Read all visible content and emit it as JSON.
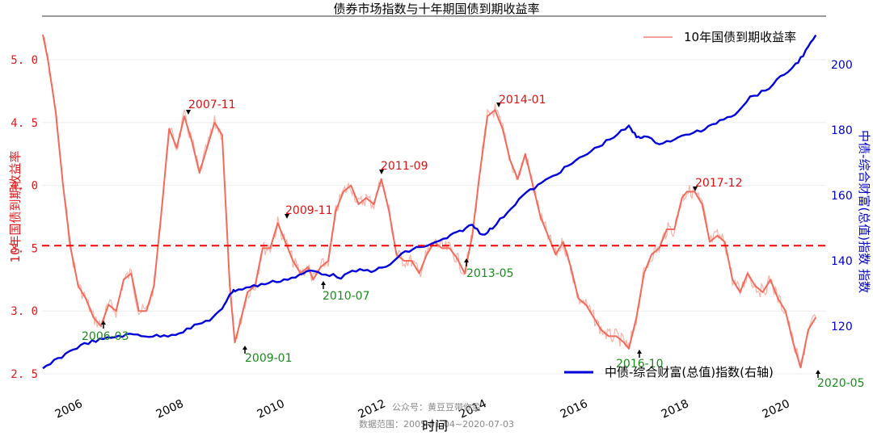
{
  "chart_data": {
    "type": "line",
    "title": "债券市场指数与十年期国债到期收益率",
    "xlabel": "时间",
    "ylabel_left": "10年国债到期收益率",
    "ylabel_right": "中债-综合财富(总值)指数",
    "x_ticks": [
      "2006",
      "2008",
      "2010",
      "2012",
      "2014",
      "2016",
      "2018",
      "2020"
    ],
    "y_left_ticks": [
      "5.0",
      "4.5",
      "4.0",
      "3.5",
      "3.0",
      "2.5"
    ],
    "y_right_ticks": [
      "200",
      "180",
      "160",
      "140",
      "120"
    ],
    "ylim_left": [
      2.45,
      5.25
    ],
    "ylim_right": [
      105,
      210
    ],
    "xlim": [
      2005.2,
      2020.55
    ],
    "grid": "horizontal light",
    "reference_line": {
      "value": 3.52,
      "style": "dashed",
      "color": "#ff0000",
      "axis": "left"
    },
    "series": [
      {
        "name": "10年国债到期收益率",
        "axis": "left",
        "color": "#f26b5b",
        "x": [
          2005.2,
          2005.3,
          2005.45,
          2005.6,
          2005.75,
          2005.9,
          2006.05,
          2006.2,
          2006.35,
          2006.5,
          2006.65,
          2006.8,
          2006.95,
          2007.1,
          2007.25,
          2007.4,
          2007.55,
          2007.7,
          2007.85,
          2008.0,
          2008.15,
          2008.3,
          2008.45,
          2008.6,
          2008.75,
          2008.9,
          2009.0,
          2009.1,
          2009.25,
          2009.4,
          2009.55,
          2009.7,
          2009.85,
          2010.0,
          2010.15,
          2010.3,
          2010.45,
          2010.55,
          2010.7,
          2010.85,
          2011.0,
          2011.15,
          2011.3,
          2011.45,
          2011.6,
          2011.75,
          2011.9,
          2012.05,
          2012.2,
          2012.35,
          2012.5,
          2012.65,
          2012.8,
          2012.95,
          2013.1,
          2013.25,
          2013.4,
          2013.55,
          2013.7,
          2013.85,
          2014.0,
          2014.15,
          2014.3,
          2014.45,
          2014.6,
          2014.75,
          2014.9,
          2015.05,
          2015.2,
          2015.35,
          2015.5,
          2015.65,
          2015.8,
          2015.95,
          2016.1,
          2016.25,
          2016.4,
          2016.55,
          2016.7,
          2016.8,
          2016.95,
          2017.1,
          2017.25,
          2017.4,
          2017.55,
          2017.7,
          2017.85,
          2017.95,
          2018.1,
          2018.25,
          2018.4,
          2018.55,
          2018.7,
          2018.85,
          2019.0,
          2019.15,
          2019.3,
          2019.45,
          2019.6,
          2019.75,
          2019.9,
          2020.05,
          2020.2,
          2020.35,
          2020.5
        ],
        "values": [
          5.2,
          5.0,
          4.6,
          4.0,
          3.5,
          3.2,
          3.1,
          2.95,
          2.88,
          3.05,
          3.0,
          3.25,
          3.3,
          3.0,
          3.0,
          3.2,
          3.8,
          4.45,
          4.3,
          4.55,
          4.35,
          4.1,
          4.3,
          4.5,
          4.4,
          3.2,
          2.75,
          2.9,
          3.15,
          3.2,
          3.5,
          3.5,
          3.7,
          3.55,
          3.4,
          3.3,
          3.35,
          3.25,
          3.35,
          3.4,
          3.8,
          3.95,
          4.0,
          3.85,
          3.9,
          3.85,
          4.05,
          3.8,
          3.45,
          3.4,
          3.4,
          3.3,
          3.45,
          3.55,
          3.5,
          3.5,
          3.42,
          3.3,
          3.6,
          4.1,
          4.55,
          4.6,
          4.45,
          4.2,
          4.05,
          4.25,
          4.0,
          3.75,
          3.6,
          3.45,
          3.55,
          3.35,
          3.1,
          3.05,
          2.95,
          2.85,
          2.8,
          2.8,
          2.75,
          2.7,
          2.95,
          3.3,
          3.45,
          3.5,
          3.65,
          3.65,
          3.9,
          3.95,
          3.95,
          3.85,
          3.55,
          3.6,
          3.55,
          3.25,
          3.15,
          3.3,
          3.2,
          3.15,
          3.25,
          3.1,
          3.0,
          2.75,
          2.55,
          2.85,
          2.95
        ]
      },
      {
        "name": "中债-综合财富(总值)指数(右轴)",
        "axis": "right",
        "color": "#0000dd",
        "x": [
          2005.2,
          2005.5,
          2005.8,
          2006.1,
          2006.4,
          2006.7,
          2007.0,
          2007.3,
          2007.6,
          2007.9,
          2008.2,
          2008.5,
          2008.75,
          2008.9,
          2009.0,
          2009.3,
          2009.6,
          2009.9,
          2010.2,
          2010.5,
          2010.8,
          2011.1,
          2011.4,
          2011.7,
          2012.0,
          2012.3,
          2012.6,
          2012.9,
          2013.2,
          2013.45,
          2013.7,
          2013.9,
          2014.1,
          2014.4,
          2014.7,
          2015.0,
          2015.3,
          2015.6,
          2015.9,
          2016.2,
          2016.5,
          2016.8,
          2016.95,
          2017.1,
          2017.4,
          2017.7,
          2018.0,
          2018.3,
          2018.6,
          2018.9,
          2019.2,
          2019.5,
          2019.8,
          2020.1,
          2020.3,
          2020.5
        ],
        "values": [
          107,
          110,
          113,
          115,
          116,
          117,
          117.5,
          117,
          117,
          118,
          120,
          122,
          125,
          130,
          131,
          132,
          133,
          134,
          135,
          137,
          136,
          135,
          137,
          137,
          138,
          142,
          144,
          145,
          147,
          149,
          151,
          148,
          150,
          155,
          160,
          163,
          166,
          169,
          172,
          175,
          178,
          181,
          178,
          178,
          176,
          177,
          179,
          180,
          183,
          185,
          190,
          192,
          196,
          200,
          204,
          209
        ]
      }
    ],
    "annotations": [
      {
        "label": "2006-03",
        "type": "trough",
        "color": "#1a8a1a"
      },
      {
        "label": "2007-11",
        "type": "peak",
        "color": "#e01010"
      },
      {
        "label": "2009-01",
        "type": "trough",
        "color": "#1a8a1a"
      },
      {
        "label": "2009-11",
        "type": "peak",
        "color": "#e01010"
      },
      {
        "label": "2010-07",
        "type": "trough",
        "color": "#1a8a1a"
      },
      {
        "label": "2011-09",
        "type": "peak",
        "color": "#e01010"
      },
      {
        "label": "2013-05",
        "type": "trough",
        "color": "#1a8a1a"
      },
      {
        "label": "2014-01",
        "type": "peak",
        "color": "#e01010"
      },
      {
        "label": "2016-10",
        "type": "trough",
        "color": "#1a8a1a"
      },
      {
        "label": "2017-12",
        "type": "peak",
        "color": "#e01010"
      },
      {
        "label": "2020-05",
        "type": "trough",
        "color": "#1a8a1a"
      }
    ],
    "legend": [
      {
        "label": "10年国债到期收益率",
        "position": "upper right",
        "color": "#f4a09a"
      },
      {
        "label": "中债-综合财富(总值)指数(右轴)",
        "position": "lower right",
        "color": "#0000dd"
      }
    ]
  },
  "watermark": {
    "line1": "公众号：黄豆豆带你盈",
    "line2": "数据范围：2005-01-04~2020-07-03"
  }
}
